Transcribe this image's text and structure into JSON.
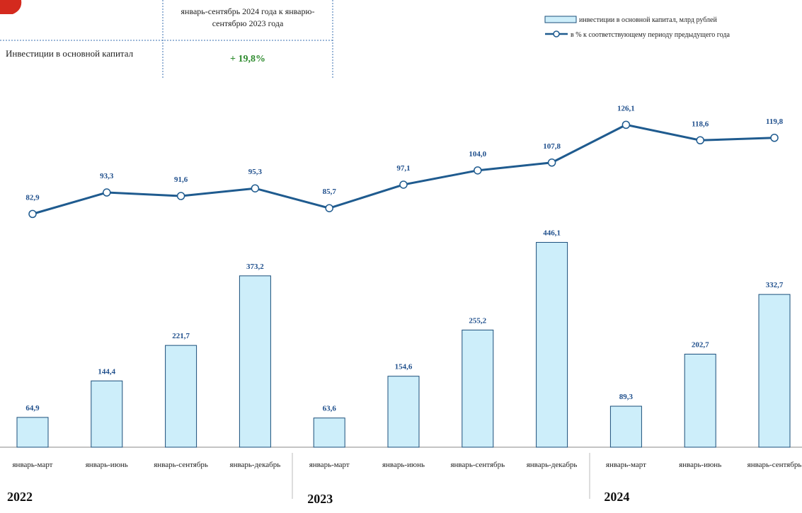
{
  "table": {
    "header": "январь-сентябрь 2024 года к январю-сентябрю 2023 года",
    "rows": [
      [
        "Инвестиции в основной капитал",
        "+ 19,8%"
      ]
    ]
  },
  "chart_data": {
    "type": "bar",
    "categories": [
      "январь-март",
      "январь-июнь",
      "январь-сентябрь",
      "январь-декабрь",
      "январь-март",
      "январь-июнь",
      "январь-сентябрь",
      "январь-декабрь",
      "январь-март",
      "январь-июнь",
      "январь-сентябрь"
    ],
    "groups": [
      {
        "label": "2022",
        "count": 4
      },
      {
        "label": "2023",
        "count": 4
      },
      {
        "label": "2024",
        "count": 3
      }
    ],
    "series": [
      {
        "name": "инвестиции в основной капитал, млрд рублей",
        "type": "bar",
        "color": "#cdeefa",
        "values": [
          64.9,
          144.4,
          221.7,
          373.2,
          63.6,
          154.6,
          255.2,
          446.1,
          89.3,
          202.7,
          332.7
        ],
        "value_labels": [
          "64,9",
          "144,4",
          "221,7",
          "373,2",
          "63,6",
          "154,6",
          "255,2",
          "446,1",
          "89,3",
          "202,7",
          "332,7"
        ]
      },
      {
        "name": "в % к соответствующему периоду предыдущего года",
        "type": "line",
        "axis": "y2",
        "color": "#1f5b8f",
        "values": [
          82.9,
          93.3,
          91.6,
          95.3,
          85.7,
          97.1,
          104.0,
          107.8,
          126.1,
          118.6,
          119.8
        ],
        "value_labels": [
          "82,9",
          "93,3",
          "91,6",
          "95,3",
          "85,7",
          "97,1",
          "104,0",
          "107,8",
          "126,1",
          "118,6",
          "119,8"
        ]
      }
    ],
    "ylim": [
      0,
      450
    ],
    "y2lim": [
      70,
      130
    ]
  }
}
